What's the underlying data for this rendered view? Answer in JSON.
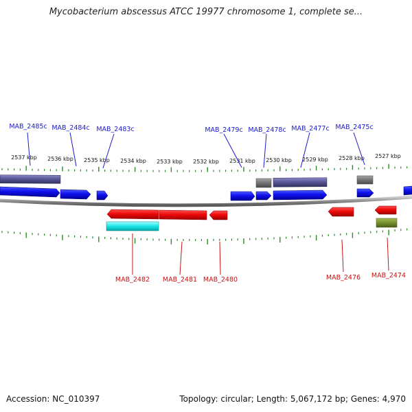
{
  "title": "Mycobacterium abscessus ATCC 19977 chromosome 1, complete se...",
  "footer": {
    "accession": "Accession: NC_010397",
    "summary": "Topology: circular; Length: 5,067,172 bp; Genes: 4,970"
  },
  "colors": {
    "top_label": "#1a1acc",
    "bottom_label": "#cc1111",
    "tick": "#2a8a2a",
    "backbone": "#8a8a8a"
  },
  "scale_labels": [
    "2537 kbp",
    "2536 kbp",
    "2535 kbp",
    "2534 kbp",
    "2533 kbp",
    "2532 kbp",
    "2531 kbp",
    "2530 kbp",
    "2529 kbp",
    "2528 kbp",
    "2527 kbp"
  ],
  "top_genes": [
    "MAB_2485c",
    "MAB_2484c",
    "MAB_2483c",
    "MAB_2479c",
    "MAB_2478c",
    "MAB_2477c",
    "MAB_2475c"
  ],
  "bottom_genes": [
    "MAB_2482",
    "MAB_2481",
    "MAB_2480",
    "MAB_2476",
    "MAB_2474"
  ]
}
